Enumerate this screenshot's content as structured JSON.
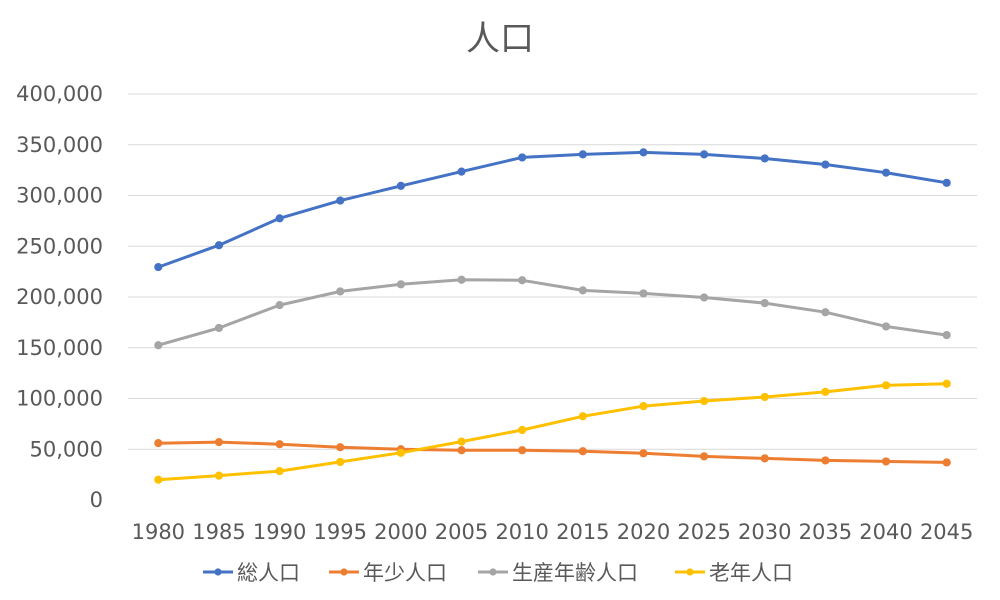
{
  "chart_data": {
    "type": "line",
    "title": "人口",
    "x": [
      "1980",
      "1985",
      "1990",
      "1995",
      "2000",
      "2005",
      "2010",
      "2015",
      "2020",
      "2025",
      "2030",
      "2035",
      "2040",
      "2045"
    ],
    "ylim": [
      0,
      400000
    ],
    "yticks": [
      0,
      50000,
      100000,
      150000,
      200000,
      250000,
      300000,
      350000,
      400000
    ],
    "ytick_labels": [
      "0",
      "50,000",
      "100,000",
      "150,000",
      "200,000",
      "250,000",
      "300,000",
      "350,000",
      "400,000"
    ],
    "grid": true,
    "legend_position": "bottom",
    "series": [
      {
        "name": "総人口",
        "color": "#4472C4",
        "values": [
          229500,
          251000,
          277500,
          295000,
          309500,
          323500,
          337500,
          340500,
          342500,
          340500,
          336500,
          330500,
          322500,
          312500
        ]
      },
      {
        "name": "年少人口",
        "color": "#ED7D31",
        "values": [
          56000,
          57000,
          55000,
          52000,
          50000,
          49000,
          49000,
          48000,
          46000,
          43000,
          41000,
          39000,
          38000,
          37000
        ]
      },
      {
        "name": "生産年齢人口",
        "color": "#A5A5A5",
        "values": [
          152500,
          169500,
          192000,
          205500,
          212500,
          217000,
          216500,
          206500,
          203500,
          199500,
          194000,
          185000,
          171000,
          162500
        ]
      },
      {
        "name": "老年人口",
        "color": "#FFC000",
        "values": [
          20000,
          24000,
          28500,
          37500,
          46500,
          57500,
          69000,
          82500,
          92500,
          97500,
          101500,
          106500,
          113000,
          114500
        ]
      }
    ]
  }
}
